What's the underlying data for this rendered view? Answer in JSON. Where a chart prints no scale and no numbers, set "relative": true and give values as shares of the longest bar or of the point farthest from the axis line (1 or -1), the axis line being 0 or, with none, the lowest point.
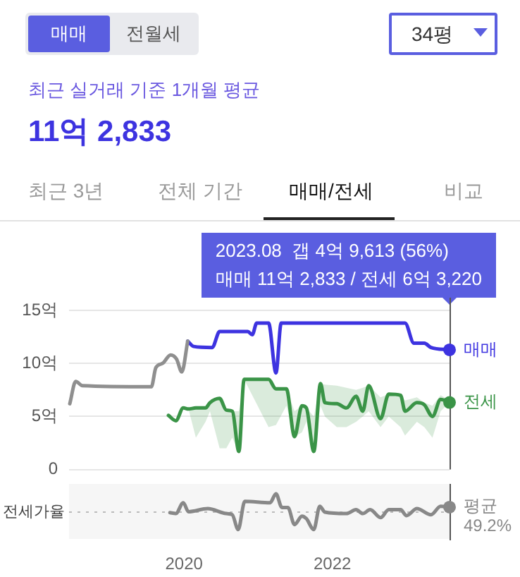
{
  "chart_data": [
    {
      "type": "line",
      "title": "최근 실거래 기준 1개월 평균",
      "subtitle": "11억 2,833",
      "annotations": [
        "매매",
        "전월세",
        "34평",
        "최근 3년",
        "전체 기간",
        "매매/전세",
        "비교",
        "2023.08  갭 4억 9,613 (56%)\n매매 11억 2,833 / 전세 6억 3,220"
      ],
      "xlim": [
        2018.45,
        2023.58
      ],
      "ylim": [
        0,
        15
      ],
      "yticks": [
        {
          "value": 0,
          "label": "0"
        },
        {
          "value": 5,
          "label": "5억"
        },
        {
          "value": 10,
          "label": "10억"
        },
        {
          "value": 15,
          "label": "15억"
        }
      ],
      "grid": "y",
      "tick_labels": "y",
      "ref_lines": [
        {
          "axis": "x",
          "value": 2023.58,
          "color": "#555555"
        }
      ],
      "series": [
        {
          "color": "#8f8f8f",
          "x": [
            2018.46,
            2018.54,
            2018.63,
            2019.56,
            2019.62,
            2019.71,
            2019.82,
            2019.9,
            2019.97,
            2020.05
          ],
          "values": [
            6.2,
            8.3,
            7.9,
            7.8,
            9.6,
            10.0,
            10.8,
            10.4,
            9.2,
            12.1
          ]
        },
        {
          "name": "매매",
          "color": "#3d33e0",
          "x": [
            2020.05,
            2020.13,
            2020.38,
            2020.48,
            2020.86,
            2020.92,
            2020.98,
            2021.14,
            2021.24,
            2021.31,
            2022.98,
            2023.1,
            2023.24,
            2023.33,
            2023.58
          ],
          "values": [
            12.1,
            11.6,
            11.5,
            13.0,
            13.0,
            12.7,
            13.8,
            13.8,
            9.1,
            13.8,
            13.8,
            11.9,
            11.9,
            11.5,
            11.28
          ]
        },
        {
          "name": "전세",
          "color": "#3a9447",
          "x": [
            2019.79,
            2019.89,
            2019.99,
            2020.06,
            2020.16,
            2020.29,
            2020.35,
            2020.48,
            2020.57,
            2020.65,
            2020.74,
            2020.81,
            2021.14,
            2021.24,
            2021.38,
            2021.49,
            2021.59,
            2021.65,
            2021.75,
            2021.84,
            2021.9,
            2022.06,
            2022.19,
            2022.32,
            2022.41,
            2022.49,
            2022.65,
            2022.76,
            2022.92,
            2022.98,
            2023.14,
            2023.24,
            2023.35,
            2023.46,
            2023.58
          ],
          "values": [
            5.1,
            4.6,
            5.8,
            5.7,
            5.8,
            5.8,
            6.3,
            6.7,
            5.6,
            5.5,
            1.7,
            8.5,
            8.5,
            7.6,
            7.6,
            3.1,
            6.0,
            5.8,
            1.7,
            8.1,
            6.3,
            6.2,
            5.8,
            6.9,
            5.5,
            7.9,
            4.8,
            7.1,
            7.0,
            5.5,
            6.3,
            6.1,
            5.0,
            6.6,
            6.32
          ],
          "upper": [
            5.1,
            4.6,
            5.8,
            5.7,
            5.8,
            5.8,
            6.3,
            6.7,
            5.6,
            5.5,
            5.5,
            8.5,
            8.5,
            7.6,
            7.6,
            5.5,
            6.0,
            5.8,
            5.0,
            8.1,
            8.0,
            7.9,
            7.7,
            7.5,
            7.7,
            7.9,
            6.8,
            7.1,
            7.0,
            6.5,
            6.8,
            6.3,
            6.0,
            7.0,
            6.5
          ],
          "lower": [
            5.1,
            4.6,
            5.8,
            5.7,
            3.0,
            4.5,
            5.5,
            2.0,
            2.0,
            3.0,
            1.7,
            8.5,
            4.0,
            4.2,
            6.0,
            3.1,
            3.5,
            4.5,
            1.7,
            6.0,
            5.0,
            4.0,
            4.0,
            4.5,
            5.0,
            5.5,
            4.0,
            5.0,
            4.0,
            3.2,
            4.5,
            4.0,
            3.0,
            5.5,
            6.32
          ]
        }
      ]
    },
    {
      "type": "line",
      "xlim": [
        2018.45,
        2023.58
      ],
      "xticks": [
        2020,
        2022
      ],
      "relative": true,
      "annotations": [
        "전세가율"
      ],
      "ref_lines": [
        {
          "axis": "x",
          "value": 2023.58,
          "color": "#555555"
        },
        {
          "axis": "y",
          "value": 0,
          "label": "평균 49.2%",
          "line_style": "dotted",
          "color": "#bbbbbb"
        }
      ],
      "series": [
        {
          "color": "#888888",
          "x": [
            2019.81,
            2019.89,
            2019.99,
            2020.06,
            2020.32,
            2020.57,
            2020.65,
            2020.73,
            2020.82,
            2021.16,
            2021.24,
            2021.32,
            2021.4,
            2021.49,
            2021.59,
            2021.65,
            2021.75,
            2021.83,
            2021.9,
            2022.19,
            2022.32,
            2022.41,
            2022.51,
            2022.65,
            2022.76,
            2022.92,
            2023.0,
            2023.14,
            2023.33,
            2023.46,
            2023.58
          ],
          "values": [
            -0.03,
            -0.08,
            0.51,
            0.02,
            0.19,
            -0.08,
            -0.14,
            -0.95,
            0.59,
            0.51,
            1,
            0.25,
            0.25,
            -0.68,
            -0.22,
            -0.36,
            -0.95,
            0.32,
            0,
            -0.08,
            0.13,
            -0.08,
            0.13,
            -0.3,
            0.13,
            0.13,
            -0.19,
            0.19,
            -0.14,
            0.32,
            0.27
          ]
        }
      ]
    }
  ]
}
